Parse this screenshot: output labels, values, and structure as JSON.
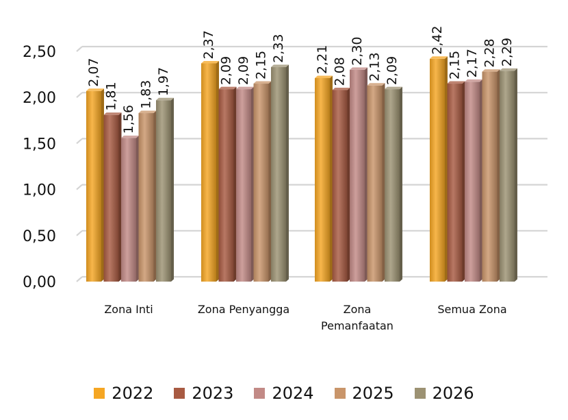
{
  "chart_data": {
    "type": "bar",
    "categories": [
      "Zona Inti",
      "Zona Penyangga",
      "Zona Pemanfaatan",
      "Semua Zona"
    ],
    "category_lines": [
      [
        "Zona Inti"
      ],
      [
        "Zona Penyangga"
      ],
      [
        "Zona",
        "Pemanfaatan"
      ],
      [
        "Semua Zona"
      ]
    ],
    "series": [
      {
        "name": "2022",
        "color": "#f5a623",
        "values": [
          2.07,
          2.37,
          2.21,
          2.42
        ],
        "labels": [
          "2,07",
          "2,37",
          "2,21",
          "2,42"
        ]
      },
      {
        "name": "2023",
        "color": "#a85a42",
        "values": [
          1.81,
          2.09,
          2.08,
          2.15
        ],
        "labels": [
          "1,81",
          "2,09",
          "2,08",
          "2,15"
        ]
      },
      {
        "name": "2024",
        "color": "#c28a86",
        "values": [
          1.56,
          2.09,
          2.3,
          2.17
        ],
        "labels": [
          "1,56",
          "2,09",
          "2,30",
          "2,17"
        ]
      },
      {
        "name": "2025",
        "color": "#c9956a",
        "values": [
          1.83,
          2.15,
          2.13,
          2.28
        ],
        "labels": [
          "1,83",
          "2,15",
          "2,13",
          "2,28"
        ]
      },
      {
        "name": "2026",
        "color": "#9c9273",
        "values": [
          1.97,
          2.33,
          2.09,
          2.29
        ],
        "labels": [
          "1,97",
          "2,33",
          "2,09",
          "2,29"
        ]
      }
    ],
    "yticks": [
      "0,00",
      "0,50",
      "1,00",
      "1,50",
      "2,00",
      "2,50"
    ],
    "ytick_values": [
      0,
      0.5,
      1.0,
      1.5,
      2.0,
      2.5
    ],
    "ylim": [
      0,
      2.5
    ],
    "title": "",
    "xlabel": "",
    "ylabel": "",
    "grid": true,
    "legend_position": "bottom"
  }
}
